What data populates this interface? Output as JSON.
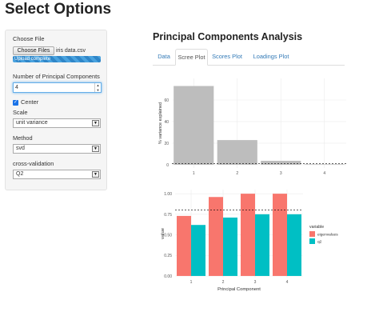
{
  "page_title": "Select Options",
  "sidebar": {
    "file_label": "Choose File",
    "file_button": "Choose Files",
    "file_name": "iris data.csv",
    "upload_status": "Upload complete",
    "upload_progress_pct": 100,
    "num_pc_label": "Number of Principal Components",
    "num_pc_value": "4",
    "center_label": "Center",
    "center_checked": true,
    "scale_label": "Scale",
    "scale_value": "unit variance",
    "method_label": "Method",
    "method_value": "svd",
    "cv_label": "cross-validation",
    "cv_value": "Q2"
  },
  "main": {
    "title": "Principal Components Analysis",
    "tabs": [
      {
        "label": "Data",
        "active": false
      },
      {
        "label": "Scree Plot",
        "active": true
      },
      {
        "label": "Scores Plot",
        "active": false
      },
      {
        "label": "Loadings Plot",
        "active": false
      }
    ]
  },
  "chart_data": [
    {
      "type": "bar",
      "categories": [
        "1",
        "2",
        "3",
        "4"
      ],
      "values": [
        72.96,
        22.85,
        3.67,
        0.52
      ],
      "ylabel": "% variance explained",
      "ylim": [
        -3,
        80
      ],
      "yticks": [
        0,
        20,
        40,
        60
      ],
      "hline": 1,
      "colors": {
        "bar": "#bdbdbd",
        "grid": "#ebebeb"
      }
    },
    {
      "type": "bar",
      "categories": [
        "1",
        "2",
        "3",
        "4"
      ],
      "xlabel": "Principal Component",
      "ylabel": "value",
      "ylim": [
        -0.02,
        1.05
      ],
      "yticks": [
        "0.00",
        "0.25",
        "0.50",
        "0.75",
        "1.00"
      ],
      "hline": 0.8,
      "legend_title": "variable",
      "legend_position": "right",
      "series": [
        {
          "name": "eigenvalues",
          "color": "#f8766d",
          "values": [
            0.73,
            0.96,
            1.0,
            1.0
          ]
        },
        {
          "name": "q2",
          "color": "#00bfc4",
          "values": [
            0.62,
            0.71,
            0.75,
            0.75
          ]
        }
      ]
    }
  ]
}
